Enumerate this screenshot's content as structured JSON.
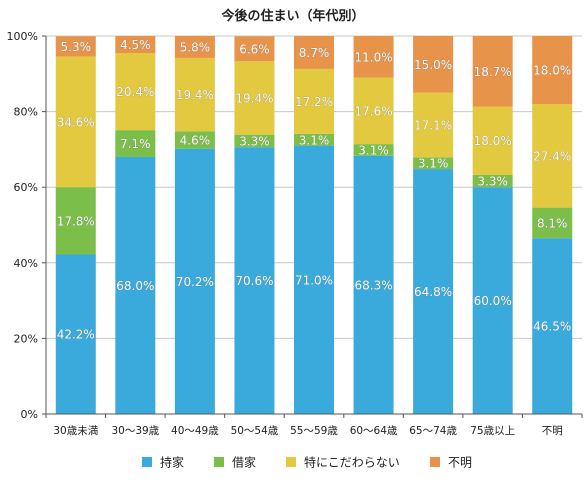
{
  "chart_data": {
    "type": "bar",
    "stacked": true,
    "title": "今後の住まい（年代別）",
    "categories": [
      "30歳未満",
      "30～39歳",
      "40～49歳",
      "50～54歳",
      "55～59歳",
      "60～64歳",
      "65～74歳",
      "75歳以上",
      "不明"
    ],
    "y_ticks": [
      "0%",
      "20%",
      "40%",
      "60%",
      "80%",
      "100%"
    ],
    "ylim": [
      0,
      100
    ],
    "grid": true,
    "legend_position": "bottom",
    "series": [
      {
        "name": "持家",
        "color": "#3aaadc",
        "values": [
          42.2,
          68.0,
          70.2,
          70.6,
          71.0,
          68.3,
          64.8,
          60.0,
          46.5
        ],
        "labels": [
          "42.2%",
          "68.0%",
          "70.2%",
          "70.6%",
          "71.0%",
          "68.3%",
          "64.8%",
          "60.0%",
          "46.5%"
        ]
      },
      {
        "name": "借家",
        "color": "#7bbf4a",
        "values": [
          17.8,
          7.1,
          4.6,
          3.3,
          3.1,
          3.1,
          3.1,
          3.3,
          8.1
        ],
        "labels": [
          "17.8%",
          "7.1%",
          "4.6%",
          "3.3%",
          "3.1%",
          "3.1%",
          "3.1%",
          "3.3%",
          "8.1%"
        ]
      },
      {
        "name": "特にこだわらない",
        "color": "#e3c93f",
        "values": [
          34.6,
          20.4,
          19.4,
          19.4,
          17.2,
          17.6,
          17.1,
          18.0,
          27.4
        ],
        "labels": [
          "34.6%",
          "20.4%",
          "19.4%",
          "19.4%",
          "17.2%",
          "17.6%",
          "17.1%",
          "18.0%",
          "27.4%"
        ]
      },
      {
        "name": "不明",
        "color": "#e8934a",
        "values": [
          5.3,
          4.5,
          5.8,
          6.6,
          8.7,
          11.0,
          15.0,
          18.7,
          18.0
        ],
        "labels": [
          "5.3%",
          "4.5%",
          "5.8%",
          "6.6%",
          "8.7%",
          "11.0%",
          "15.0%",
          "18.7%",
          "18.0%"
        ]
      }
    ]
  }
}
